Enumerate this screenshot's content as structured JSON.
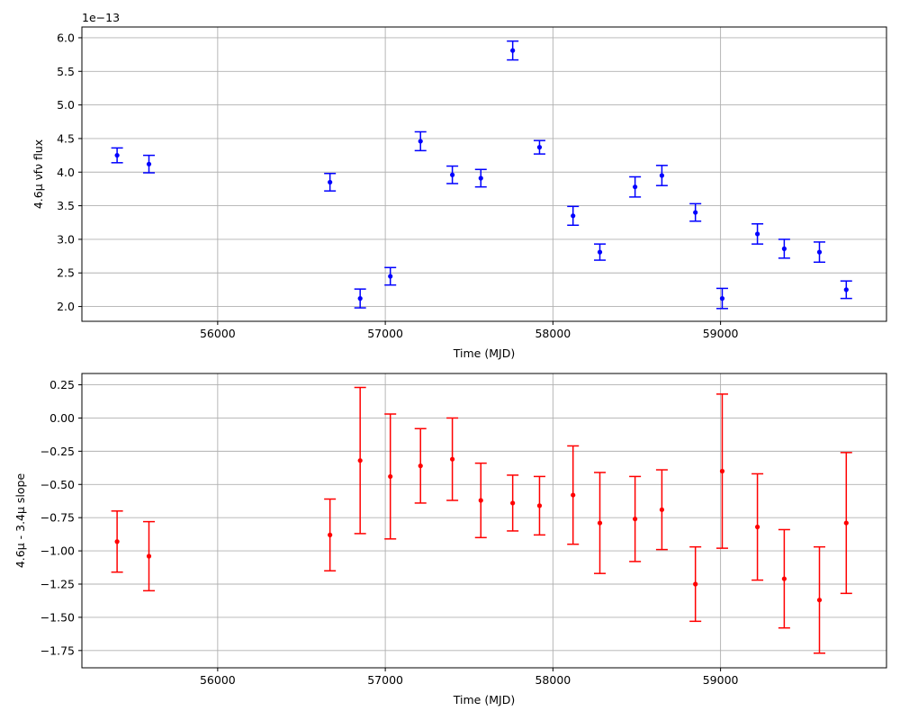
{
  "chart_data": [
    {
      "type": "scatter",
      "error_bars": true,
      "xlabel": "Time (MJD)",
      "ylabel": "4.6μ νfν flux",
      "y_offset_text": "1e−13",
      "xlim": [
        55190,
        59990
      ],
      "ylim": [
        1.78,
        6.16
      ],
      "xticks": [
        56000,
        57000,
        58000,
        59000
      ],
      "xtick_labels": [
        "56000",
        "57000",
        "58000",
        "59000"
      ],
      "yticks": [
        2.0,
        2.5,
        3.0,
        3.5,
        4.0,
        4.5,
        5.0,
        5.5,
        6.0
      ],
      "ytick_labels": [
        "2.0",
        "2.5",
        "3.0",
        "3.5",
        "4.0",
        "4.5",
        "5.0",
        "5.5",
        "6.0"
      ],
      "grid": true,
      "color": "#0000ff",
      "series": [
        {
          "x": [
            55400,
            55590,
            56670,
            56850,
            57030,
            57210,
            57400,
            57570,
            57760,
            57920,
            58120,
            58280,
            58490,
            58650,
            58850,
            59010,
            59220,
            59380,
            59590,
            59750
          ],
          "y": [
            4.25,
            4.12,
            3.85,
            2.12,
            2.45,
            4.46,
            3.96,
            3.91,
            5.81,
            4.37,
            3.35,
            2.81,
            3.78,
            3.95,
            3.4,
            2.12,
            3.08,
            2.86,
            2.81,
            2.25
          ],
          "yerr": [
            0.11,
            0.13,
            0.13,
            0.14,
            0.13,
            0.14,
            0.13,
            0.13,
            0.14,
            0.1,
            0.14,
            0.12,
            0.15,
            0.15,
            0.13,
            0.15,
            0.15,
            0.14,
            0.15,
            0.13
          ]
        }
      ]
    },
    {
      "type": "scatter",
      "error_bars": true,
      "xlabel": "Time (MJD)",
      "ylabel": "4.6μ - 3.4μ slope",
      "xlim": [
        55190,
        59990
      ],
      "ylim": [
        -1.88,
        0.335
      ],
      "xticks": [
        56000,
        57000,
        58000,
        59000
      ],
      "xtick_labels": [
        "56000",
        "57000",
        "58000",
        "59000"
      ],
      "yticks": [
        0.25,
        0.0,
        -0.25,
        -0.5,
        -0.75,
        -1.0,
        -1.25,
        -1.5,
        -1.75
      ],
      "ytick_labels": [
        "0.25",
        "0.00",
        "−0.25",
        "−0.50",
        "−0.75",
        "−1.00",
        "−1.25",
        "−1.50",
        "−1.75"
      ],
      "grid": true,
      "color": "#ff0000",
      "series": [
        {
          "x": [
            55400,
            55590,
            56670,
            56850,
            57030,
            57210,
            57400,
            57570,
            57760,
            57920,
            58120,
            58280,
            58490,
            58650,
            58850,
            59010,
            59220,
            59380,
            59590,
            59750
          ],
          "y": [
            -0.93,
            -1.04,
            -0.88,
            -0.32,
            -0.44,
            -0.36,
            -0.31,
            -0.62,
            -0.64,
            -0.66,
            -0.58,
            -0.79,
            -0.76,
            -0.69,
            -1.25,
            -0.4,
            -0.82,
            -1.21,
            -1.37,
            -0.79
          ],
          "yerr": [
            0.23,
            0.26,
            0.27,
            0.55,
            0.47,
            0.28,
            0.31,
            0.28,
            0.21,
            0.22,
            0.37,
            0.38,
            0.32,
            0.3,
            0.28,
            0.58,
            0.4,
            0.37,
            0.4,
            0.53
          ]
        }
      ]
    }
  ]
}
